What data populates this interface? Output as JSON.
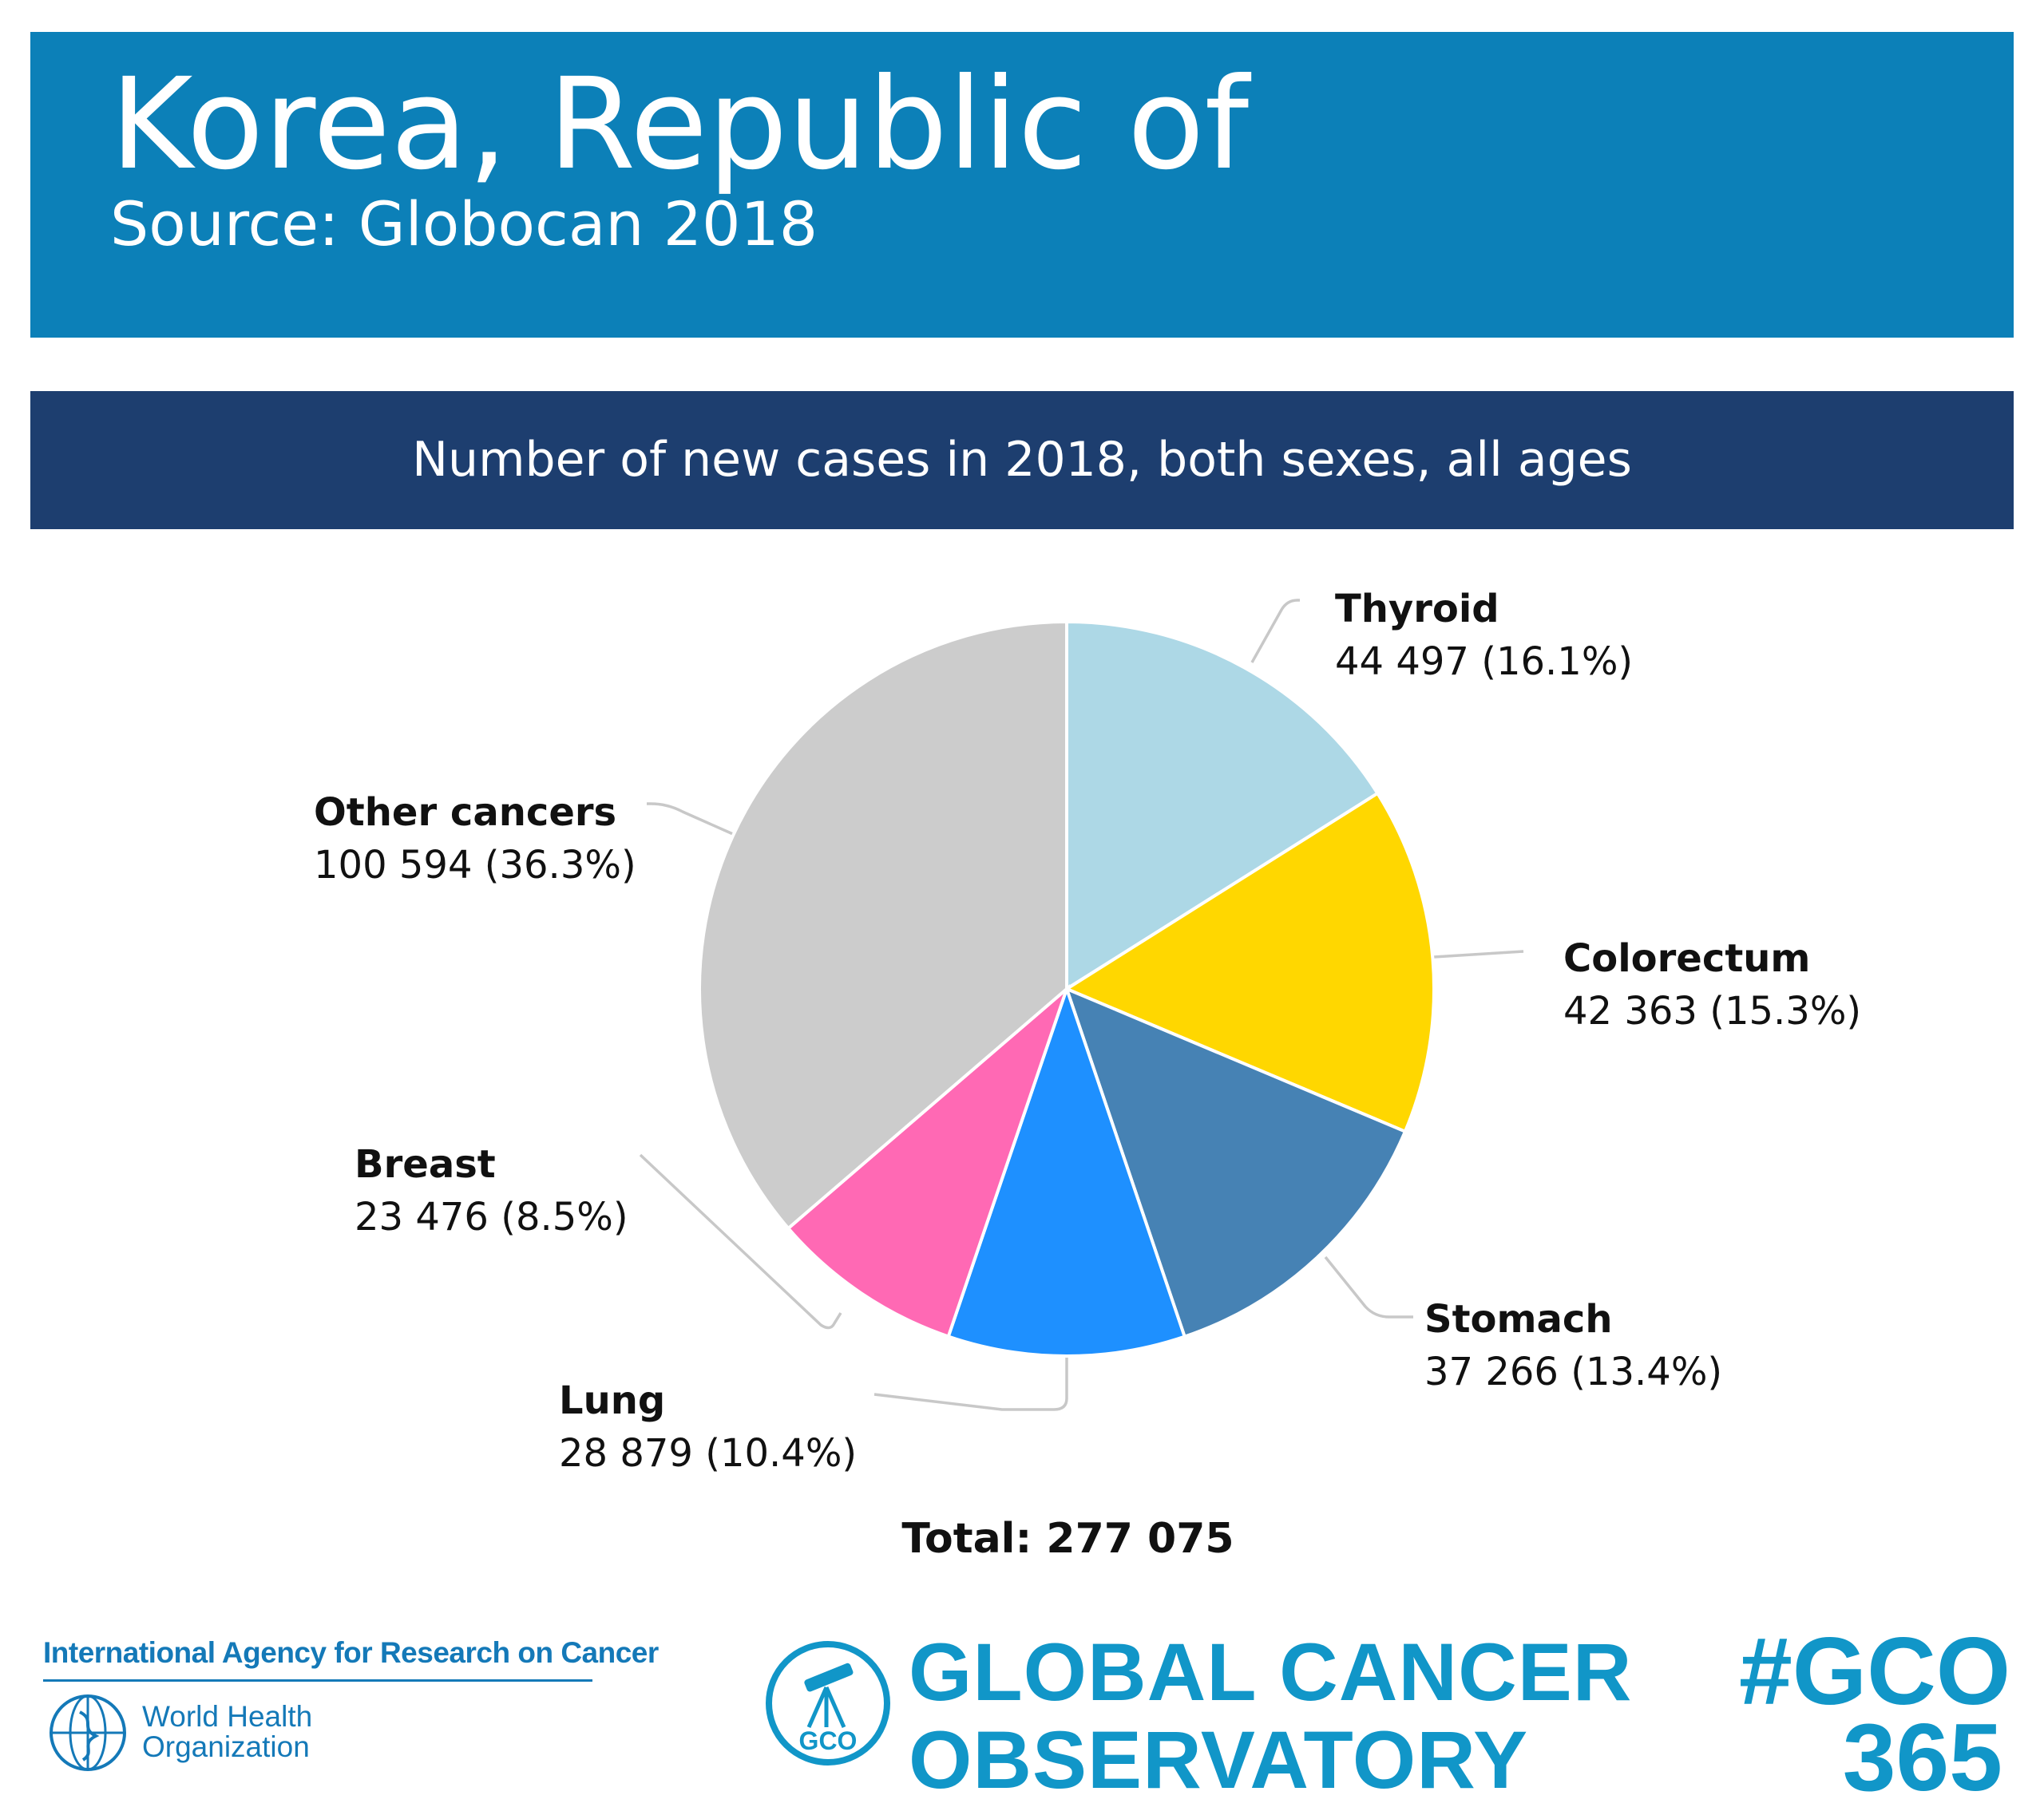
{
  "header": {
    "title": "Korea, Republic of",
    "source": "Source: Globocan 2018"
  },
  "chart_data": {
    "type": "pie",
    "title": "Number of new cases in 2018, both sexes, all ages",
    "slices": [
      {
        "name": "Thyroid",
        "value": 44497,
        "label": "44 497 (16.1%)",
        "percent": 16.1,
        "color": "#add8e6"
      },
      {
        "name": "Colorectum",
        "value": 42363,
        "label": "42 363 (15.3%)",
        "percent": 15.3,
        "color": "#ffd700"
      },
      {
        "name": "Stomach",
        "value": 37266,
        "label": "37 266 (13.4%)",
        "percent": 13.4,
        "color": "#4682b4"
      },
      {
        "name": "Lung",
        "value": 28879,
        "label": "28 879 (10.4%)",
        "percent": 10.4,
        "color": "#1e90ff"
      },
      {
        "name": "Breast",
        "value": 23476,
        "label": "23 476 (8.5%)",
        "percent": 8.5,
        "color": "#ff69b4"
      },
      {
        "name": "Other cancers",
        "value": 100594,
        "label": "100 594 (36.3%)",
        "percent": 36.3,
        "color": "#cccccc"
      }
    ],
    "total_label": "Total: 277 075",
    "legend": "none"
  },
  "footer": {
    "iarc": "International Agency for Research on Cancer",
    "who_line1": "World Health",
    "who_line2": "Organization",
    "gco_emblem_text": "GCO",
    "gco_line1": "GLOBAL CANCER",
    "gco_line2": "OBSERVATORY",
    "hashtag_line1": "#GCO",
    "hashtag_line2": "365"
  },
  "colors": {
    "header_bg": "#0c80b8",
    "chart_banner_bg": "#1d3e6f",
    "brand_blue": "#1196c8",
    "iarc_blue": "#1479b8",
    "leader_line": "#c8c8c8"
  }
}
